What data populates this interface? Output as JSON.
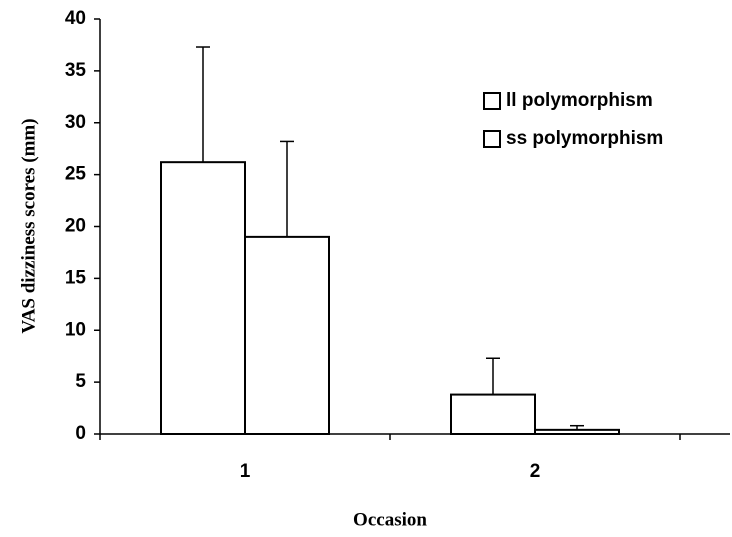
{
  "chart_data": {
    "type": "bar",
    "x_label": "Occasion",
    "y_label": "VAS dizziness scores (mm)",
    "categories": [
      "1",
      "2"
    ],
    "series": [
      {
        "name": "ll polymorphism",
        "color": "#ffffff",
        "values": [
          26.2,
          3.8
        ],
        "errors": [
          11.1,
          3.5
        ]
      },
      {
        "name": "ss polymorphism",
        "color": "#ffffff",
        "values": [
          19.0,
          0.4
        ],
        "errors": [
          9.2,
          0.4
        ]
      }
    ],
    "ylim": [
      0,
      40
    ],
    "yticks": [
      0,
      5,
      10,
      15,
      20,
      25,
      30,
      35,
      40
    ],
    "legend": "upper right"
  }
}
